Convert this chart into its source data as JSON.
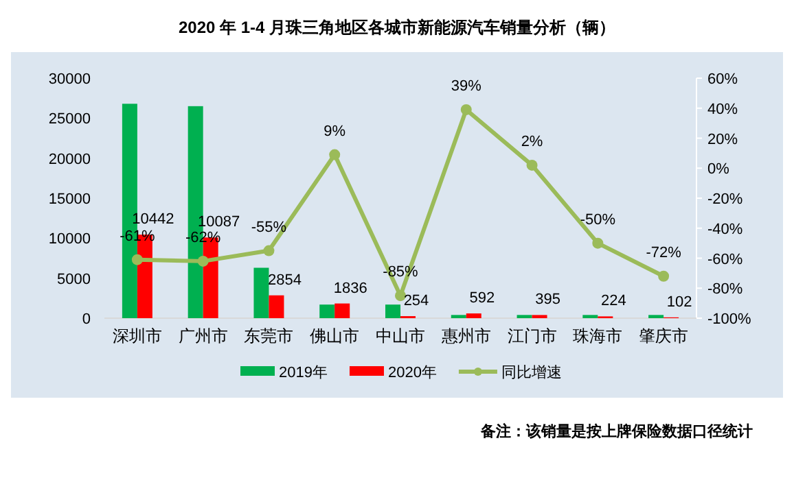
{
  "chart_data": {
    "type": "bar",
    "title": "2020 年 1-4 月珠三角地区各城市新能源汽车销量分析（辆）",
    "categories": [
      "深圳市",
      "广州市",
      "东莞市",
      "佛山市",
      "中山市",
      "惠州市",
      "江门市",
      "珠海市",
      "肇庆市"
    ],
    "series": [
      {
        "name": "2019年",
        "color": "#00b050",
        "values": [
          26800,
          26500,
          6300,
          1700,
          1700,
          400,
          400,
          400,
          400
        ]
      },
      {
        "name": "2020年",
        "color": "#ff0000",
        "values": [
          10442,
          10087,
          2854,
          1836,
          254,
          592,
          395,
          224,
          102
        ],
        "data_labels": true
      },
      {
        "name": "同比增速",
        "type": "line",
        "axis": "y2",
        "color": "#9bbb59",
        "marker": "circle",
        "values": [
          -61,
          -62,
          -55,
          9,
          -85,
          39,
          2,
          -50,
          -72
        ],
        "value_labels": [
          "-61%",
          "-62%",
          "-55%",
          "9%",
          "-85%",
          "39%",
          "2%",
          "-50%",
          "-72%"
        ]
      }
    ],
    "ylim": [
      0,
      30000
    ],
    "yticks": [
      0,
      5000,
      10000,
      15000,
      20000,
      25000,
      30000
    ],
    "y2lim": [
      -100,
      60
    ],
    "y2ticks": [
      {
        "value": -100,
        "label": "-100%"
      },
      {
        "value": -80,
        "label": "-80%"
      },
      {
        "value": -60,
        "label": "-60%"
      },
      {
        "value": -40,
        "label": "-40%"
      },
      {
        "value": -20,
        "label": "-20%"
      },
      {
        "value": 0,
        "label": "0%"
      },
      {
        "value": 20,
        "label": "20%"
      },
      {
        "value": 40,
        "label": "40%"
      },
      {
        "value": 60,
        "label": "60%"
      }
    ],
    "grid": false,
    "legend": "bottom",
    "annotations": [
      "备注：该销量是按上牌保险数据口径统计"
    ]
  }
}
